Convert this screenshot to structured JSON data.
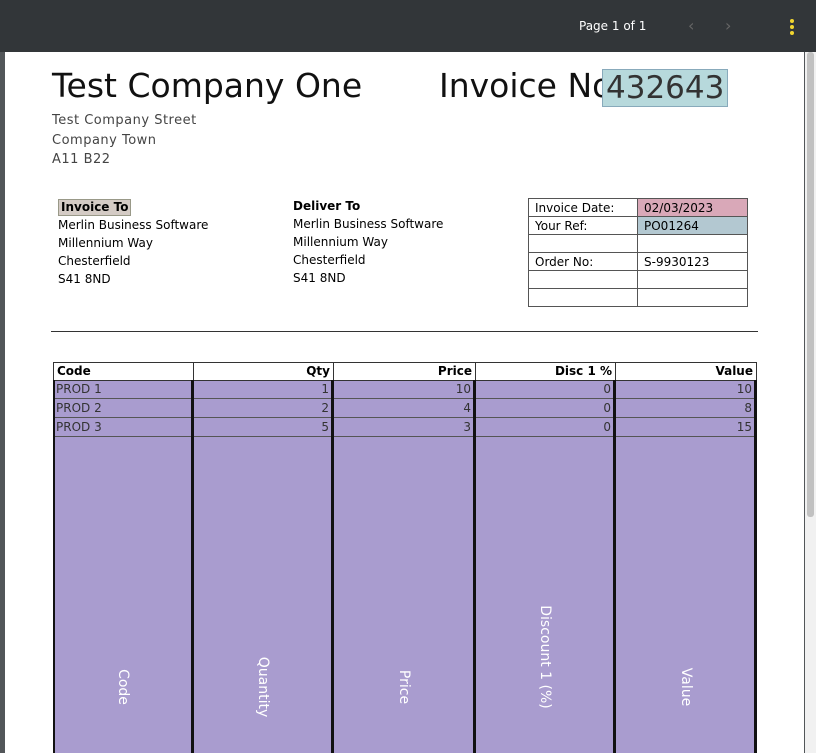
{
  "viewer": {
    "page_indicator": "Page 1 of 1"
  },
  "header": {
    "company_name": "Test Company One",
    "address": [
      "Test Company Street",
      "Company Town",
      "A11 B22"
    ],
    "invoice_label": "Invoice No.",
    "invoice_number": "432643"
  },
  "invoice_to": {
    "label": "Invoice To",
    "lines": [
      "Merlin Business Software",
      "Millennium Way",
      "Chesterfield",
      "S41 8ND"
    ]
  },
  "deliver_to": {
    "label": "Deliver To",
    "lines": [
      "Merlin Business Software",
      "Millennium Way",
      "Chesterfield",
      "S41 8ND"
    ]
  },
  "info": {
    "invoice_date": {
      "label": "Invoice Date:",
      "value": "02/03/2023"
    },
    "your_ref": {
      "label": "Your Ref:",
      "value": "PO01264"
    },
    "order_no": {
      "label": "Order No:",
      "value": "S-9930123"
    }
  },
  "table": {
    "headers": [
      "Code",
      "Qty",
      "Price",
      "Disc 1 %",
      "Value"
    ],
    "rows": [
      [
        "PROD 1",
        "1",
        "10",
        "0",
        "10"
      ],
      [
        "PROD 2",
        "2",
        "4",
        "0",
        "8"
      ],
      [
        "PROD 3",
        "5",
        "3",
        "0",
        "15"
      ]
    ],
    "column_captions": [
      "Code",
      "Quantity",
      "Price",
      "Discount 1 (%)",
      "Value"
    ]
  }
}
